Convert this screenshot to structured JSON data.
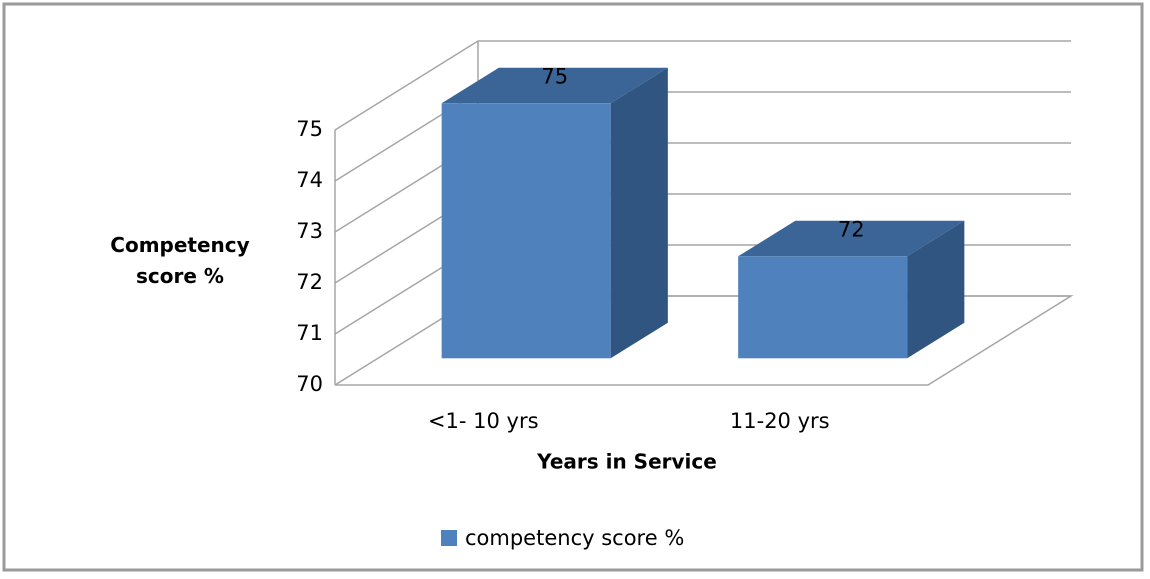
{
  "chart_data": {
    "type": "bar3d",
    "y_label": "Competency score %",
    "x_label": "Years in Service",
    "categories": [
      "<1- 10 yrs",
      "11-20 yrs"
    ],
    "series": [
      {
        "name": "competency score %",
        "color": "#4f81bd",
        "values": [
          75,
          72
        ]
      }
    ],
    "ylim": [
      70,
      75
    ],
    "yticks": [
      70,
      71,
      72,
      73,
      74,
      75
    ],
    "grid": true,
    "legend": "bottom"
  }
}
